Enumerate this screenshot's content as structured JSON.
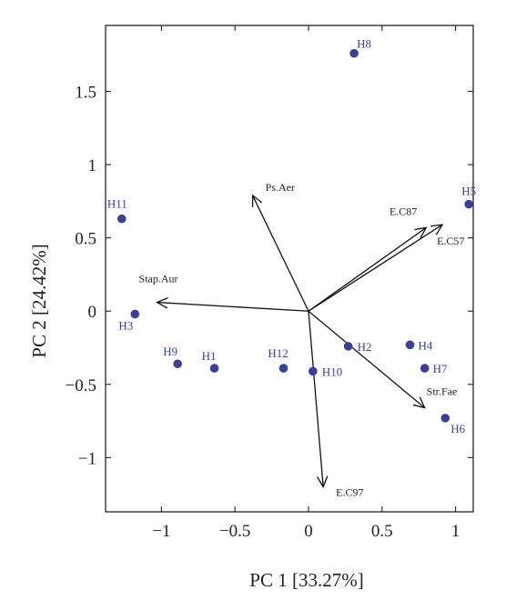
{
  "chart_data": {
    "type": "scatter",
    "subtype": "biplot",
    "xlabel": "PC 1 [33.27%]",
    "ylabel": "PC 2 [24.42%]",
    "xlim": [
      -1.38,
      1.12
    ],
    "ylim": [
      -1.37,
      1.95
    ],
    "xticks": [
      {
        "value": -1,
        "label": "−1"
      },
      {
        "value": -0.5,
        "label": "−0.5"
      },
      {
        "value": 0,
        "label": "0"
      },
      {
        "value": 0.5,
        "label": "0.5"
      },
      {
        "value": 1,
        "label": "1"
      }
    ],
    "yticks": [
      {
        "value": -1,
        "label": "−1"
      },
      {
        "value": -0.5,
        "label": "−0.5"
      },
      {
        "value": 0,
        "label": "0"
      },
      {
        "value": 0.5,
        "label": "0.5"
      },
      {
        "value": 1,
        "label": "1"
      },
      {
        "value": 1.5,
        "label": "1.5"
      }
    ],
    "grid": false,
    "point_color": "#3b3f9a",
    "points": [
      {
        "name": "H1",
        "x": -0.64,
        "y": -0.39
      },
      {
        "name": "H2",
        "x": 0.27,
        "y": -0.24
      },
      {
        "name": "H3",
        "x": -1.18,
        "y": -0.02
      },
      {
        "name": "H4",
        "x": 0.69,
        "y": -0.23
      },
      {
        "name": "H5",
        "x": 1.09,
        "y": 0.73
      },
      {
        "name": "H6",
        "x": 0.93,
        "y": -0.73
      },
      {
        "name": "H7",
        "x": 0.79,
        "y": -0.39
      },
      {
        "name": "H8",
        "x": 0.31,
        "y": 1.76
      },
      {
        "name": "H9",
        "x": -0.89,
        "y": -0.36
      },
      {
        "name": "H10",
        "x": 0.03,
        "y": -0.41
      },
      {
        "name": "H11",
        "x": -1.27,
        "y": 0.63
      },
      {
        "name": "H12",
        "x": -0.17,
        "y": -0.39
      }
    ],
    "vectors": [
      {
        "name": "Ps.Aer",
        "x": -0.38,
        "y": 0.79
      },
      {
        "name": "E.C87",
        "x": 0.8,
        "y": 0.57
      },
      {
        "name": "E.C57",
        "x": 0.91,
        "y": 0.59
      },
      {
        "name": "Stap.Aur",
        "x": -1.03,
        "y": 0.06
      },
      {
        "name": "Str.Fae",
        "x": 0.79,
        "y": -0.66
      },
      {
        "name": "E.C97",
        "x": 0.1,
        "y": -1.2
      }
    ]
  }
}
